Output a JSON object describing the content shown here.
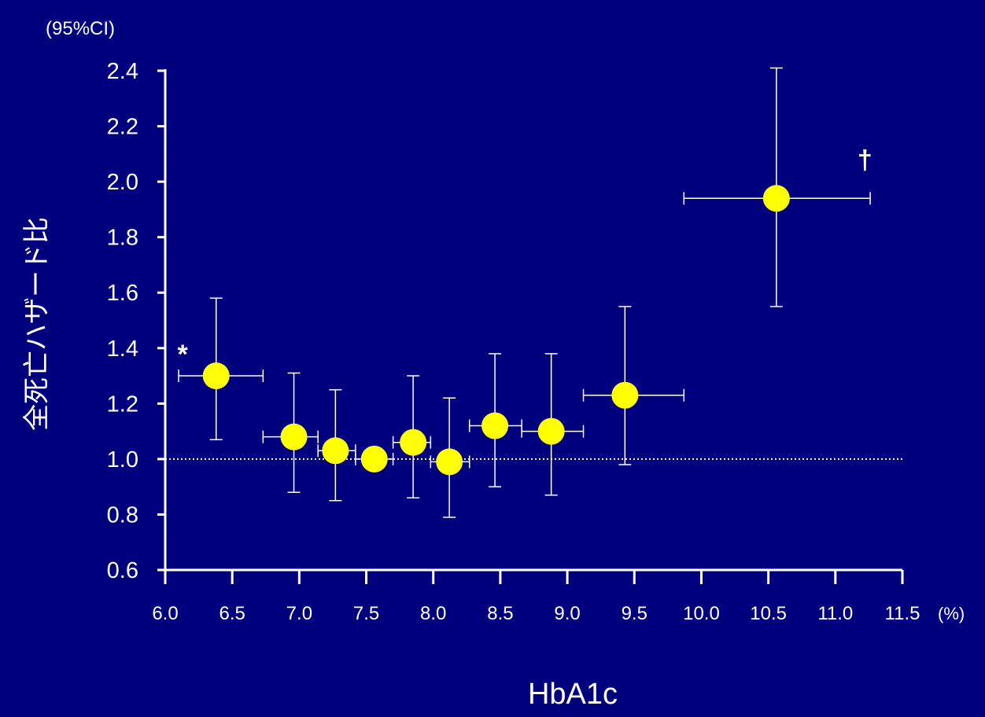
{
  "chart_data": {
    "type": "scatter",
    "ci_label": "(95%CI)",
    "xlabel": "HbA1c",
    "x_unit": "(%)",
    "ylabel": "全死亡ハザード比",
    "xlim": [
      6.0,
      11.5
    ],
    "ylim": [
      0.6,
      2.4
    ],
    "x_ticks": [
      "6.0",
      "6.5",
      "7.0",
      "7.5",
      "8.0",
      "8.5",
      "9.0",
      "9.5",
      "10.0",
      "10.5",
      "11.0",
      "11.5"
    ],
    "y_ticks": [
      "0.6",
      "0.8",
      "1.0",
      "1.2",
      "1.4",
      "1.6",
      "1.8",
      "2.0",
      "2.2",
      "2.4"
    ],
    "reference_line": 1.0,
    "marker_color": "#ffff00",
    "line_color": "#ffffff",
    "background_color": "#00007f",
    "points": [
      {
        "x": 6.38,
        "y": 1.3,
        "x_lo": 6.1,
        "x_hi": 6.73,
        "y_lo": 1.07,
        "y_hi": 1.58
      },
      {
        "x": 6.96,
        "y": 1.08,
        "x_lo": 6.73,
        "x_hi": 7.14,
        "y_lo": 0.88,
        "y_hi": 1.31
      },
      {
        "x": 7.27,
        "y": 1.03,
        "x_lo": 7.14,
        "x_hi": 7.42,
        "y_lo": 0.85,
        "y_hi": 1.25
      },
      {
        "x": 7.56,
        "y": 1.0,
        "x_lo": 7.42,
        "x_hi": 7.7,
        "y_lo": 1.0,
        "y_hi": 1.0
      },
      {
        "x": 7.85,
        "y": 1.06,
        "x_lo": 7.7,
        "x_hi": 7.98,
        "y_lo": 0.86,
        "y_hi": 1.3
      },
      {
        "x": 8.12,
        "y": 0.99,
        "x_lo": 7.98,
        "x_hi": 8.27,
        "y_lo": 0.79,
        "y_hi": 1.22
      },
      {
        "x": 8.46,
        "y": 1.12,
        "x_lo": 8.27,
        "x_hi": 8.66,
        "y_lo": 0.9,
        "y_hi": 1.38
      },
      {
        "x": 8.88,
        "y": 1.1,
        "x_lo": 8.66,
        "x_hi": 9.12,
        "y_lo": 0.87,
        "y_hi": 1.38
      },
      {
        "x": 9.43,
        "y": 1.23,
        "x_lo": 9.12,
        "x_hi": 9.87,
        "y_lo": 0.98,
        "y_hi": 1.55
      },
      {
        "x": 10.56,
        "y": 1.94,
        "x_lo": 9.87,
        "x_hi": 11.26,
        "y_lo": 1.55,
        "y_hi": 2.41
      }
    ],
    "annotations": [
      {
        "text": "*",
        "x": 6.13,
        "y": 1.38
      },
      {
        "text": "†",
        "x": 11.22,
        "y": 2.08
      }
    ]
  }
}
